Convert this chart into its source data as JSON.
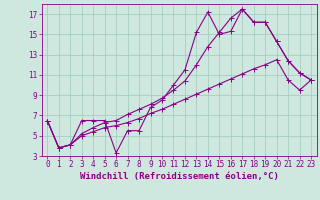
{
  "xlabel": "Windchill (Refroidissement éolien,°C)",
  "background_color": "#cee8e0",
  "grid_color": "#a0c8b8",
  "line_color": "#880088",
  "xlim": [
    -0.5,
    23.5
  ],
  "ylim": [
    3,
    18
  ],
  "xticks": [
    0,
    1,
    2,
    3,
    4,
    5,
    6,
    7,
    8,
    9,
    10,
    11,
    12,
    13,
    14,
    15,
    16,
    17,
    18,
    19,
    20,
    21,
    22,
    23
  ],
  "yticks": [
    3,
    5,
    7,
    9,
    11,
    13,
    15,
    17
  ],
  "line1_x": [
    0,
    1,
    2,
    3,
    4,
    5,
    6,
    7,
    8,
    9,
    10,
    11,
    12,
    13,
    14,
    15,
    16,
    17,
    18,
    19,
    20,
    21,
    22,
    23
  ],
  "line1_y": [
    6.5,
    3.8,
    4.1,
    6.5,
    6.5,
    6.5,
    3.3,
    5.5,
    5.5,
    7.8,
    8.5,
    10.0,
    11.5,
    15.2,
    17.2,
    15.0,
    15.3,
    17.5,
    16.2,
    16.2,
    14.3,
    12.4,
    11.2,
    10.5
  ],
  "line2_x": [
    0,
    1,
    2,
    3,
    4,
    5,
    6,
    7,
    8,
    9,
    10,
    11,
    12,
    13,
    14,
    15,
    16,
    17,
    18,
    19,
    20,
    21,
    22,
    23
  ],
  "line2_y": [
    6.5,
    3.8,
    4.1,
    5.0,
    5.4,
    5.8,
    6.0,
    6.3,
    6.7,
    7.2,
    7.6,
    8.1,
    8.6,
    9.1,
    9.6,
    10.1,
    10.6,
    11.1,
    11.6,
    12.0,
    12.5,
    10.5,
    9.5,
    10.5
  ],
  "line3_x": [
    0,
    1,
    2,
    3,
    4,
    5,
    6,
    7,
    8,
    9,
    10,
    11,
    12,
    13,
    14,
    15,
    16,
    17,
    18,
    19,
    20,
    21,
    22,
    23
  ],
  "line3_y": [
    6.5,
    3.8,
    4.1,
    5.2,
    5.8,
    6.3,
    6.5,
    7.1,
    7.6,
    8.1,
    8.7,
    9.5,
    10.4,
    12.0,
    13.8,
    15.2,
    16.6,
    17.5,
    16.2,
    16.2,
    14.3,
    12.4,
    11.2,
    10.5
  ],
  "xlabel_fontsize": 6.5,
  "tick_fontsize": 5.5,
  "markersize": 2.0,
  "linewidth": 0.8
}
